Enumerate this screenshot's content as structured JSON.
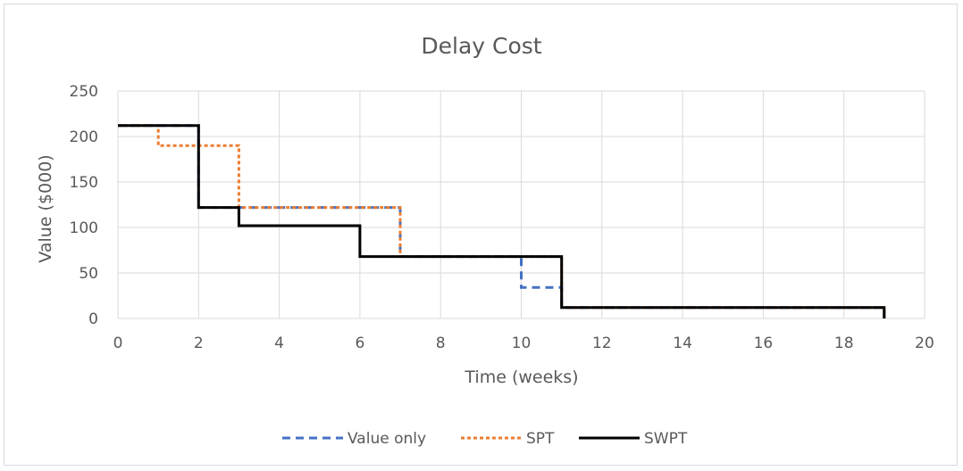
{
  "chart_data": {
    "type": "line",
    "title": "Delay Cost",
    "xlabel": "Time (weeks)",
    "ylabel": "Value ($000)",
    "xlim": [
      0,
      20
    ],
    "ylim": [
      0,
      250
    ],
    "x_ticks": [
      0,
      2,
      4,
      6,
      8,
      10,
      12,
      14,
      16,
      18,
      20
    ],
    "y_ticks": [
      0,
      50,
      100,
      150,
      200,
      250
    ],
    "grid": true,
    "legend_position": "bottom",
    "series": [
      {
        "name": "Value only",
        "color": "#4472c4",
        "style": "dashed",
        "points": [
          [
            0,
            212
          ],
          [
            2,
            212
          ],
          [
            2,
            122
          ],
          [
            7,
            122
          ],
          [
            7,
            68
          ],
          [
            10,
            68
          ],
          [
            10,
            34
          ],
          [
            11,
            34
          ],
          [
            11,
            12
          ],
          [
            19,
            12
          ],
          [
            19,
            0
          ]
        ]
      },
      {
        "name": "SPT",
        "color": "#ed7d31",
        "style": "dotted",
        "points": [
          [
            0,
            212
          ],
          [
            1,
            212
          ],
          [
            1,
            190
          ],
          [
            3,
            190
          ],
          [
            3,
            122
          ],
          [
            7,
            122
          ],
          [
            7,
            68
          ],
          [
            11,
            68
          ],
          [
            11,
            12
          ],
          [
            19,
            12
          ],
          [
            19,
            0
          ]
        ]
      },
      {
        "name": "SWPT",
        "color": "#000000",
        "style": "solid",
        "points": [
          [
            0,
            212
          ],
          [
            2,
            212
          ],
          [
            2,
            122
          ],
          [
            3,
            122
          ],
          [
            3,
            102
          ],
          [
            6,
            102
          ],
          [
            6,
            68
          ],
          [
            11,
            68
          ],
          [
            11,
            12
          ],
          [
            19,
            12
          ],
          [
            19,
            0
          ]
        ]
      }
    ]
  }
}
